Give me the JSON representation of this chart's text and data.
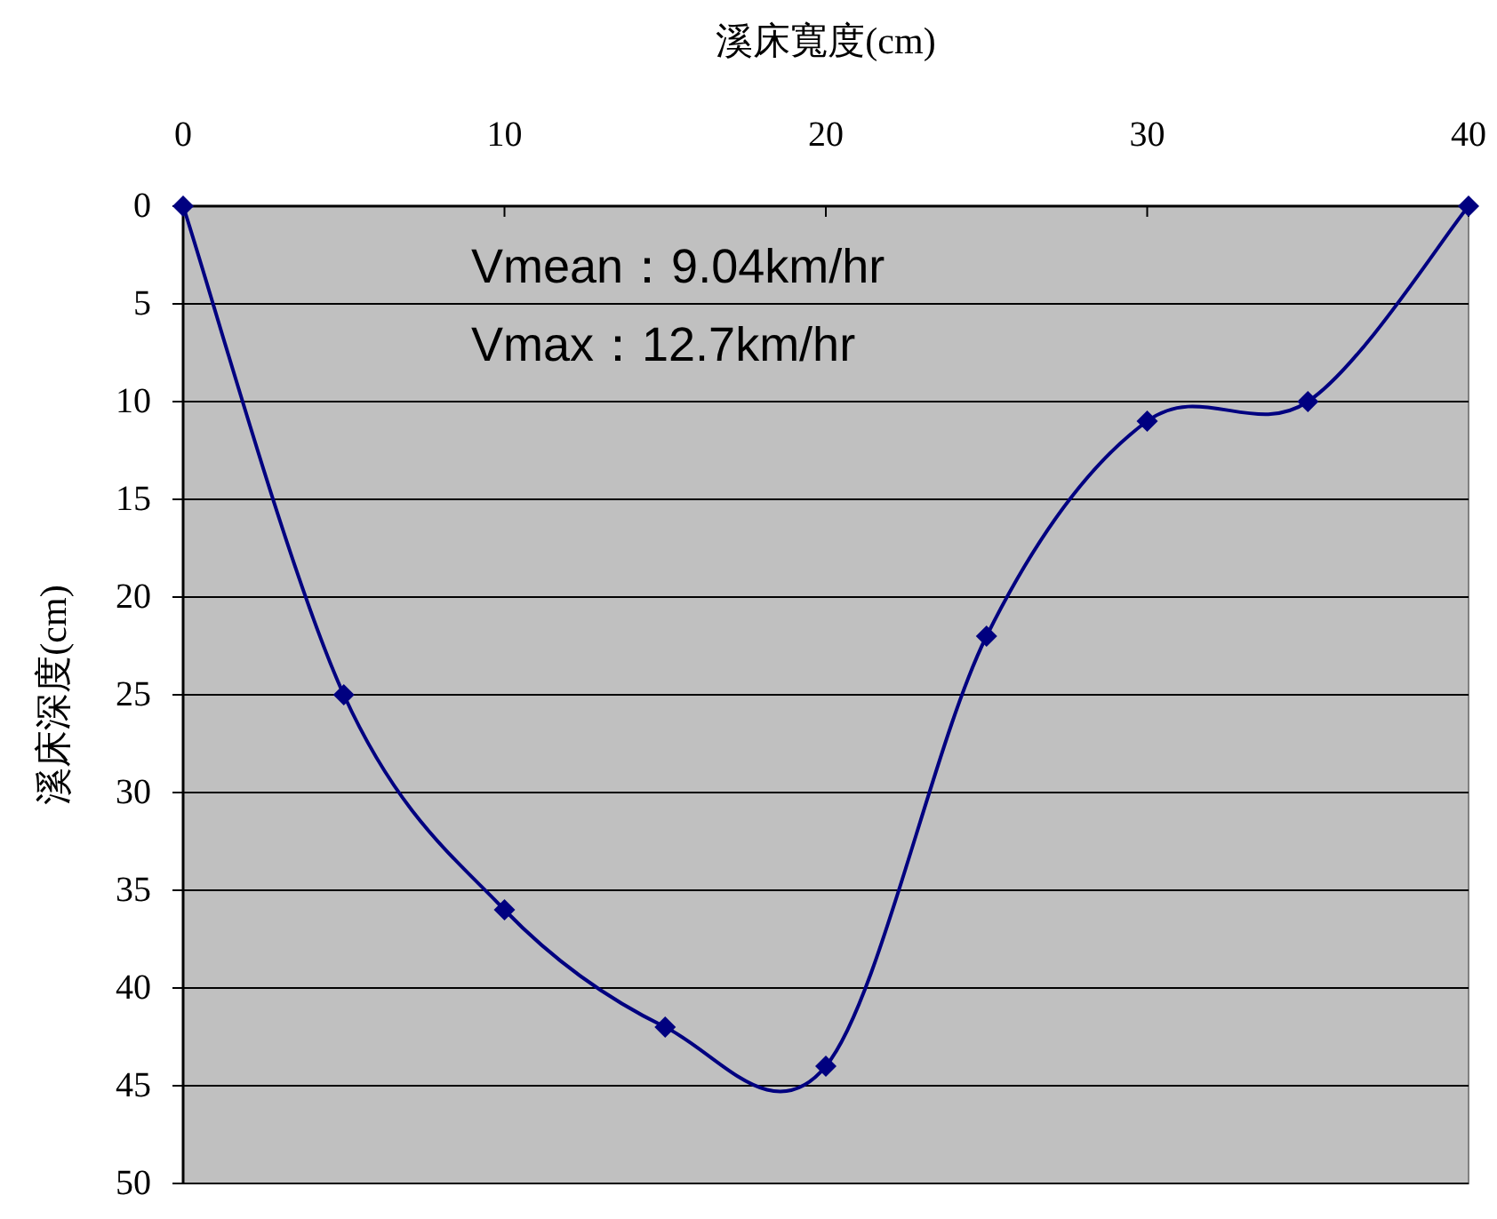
{
  "chart_data": {
    "type": "line",
    "xlabel": "溪床寬度(cm)",
    "ylabel": "溪床深度(cm)",
    "x": [
      0,
      5,
      10,
      15,
      20,
      25,
      30,
      35,
      40
    ],
    "series": [
      {
        "color": "#000080",
        "values": [
          0,
          25,
          36,
          42,
          44,
          22,
          11,
          10,
          0
        ]
      }
    ],
    "xlim": [
      0,
      40
    ],
    "xticks": [
      0,
      10,
      20,
      30,
      40
    ],
    "ylim": [
      50,
      0
    ],
    "yticks": [
      0,
      5,
      10,
      15,
      20,
      25,
      30,
      35,
      40,
      45,
      50
    ],
    "grid": "y",
    "marker": "diamond",
    "line_style": "solid",
    "annotations": [
      "Vmean：9.04km/hr",
      "Vmax：12.7km/hr"
    ]
  }
}
